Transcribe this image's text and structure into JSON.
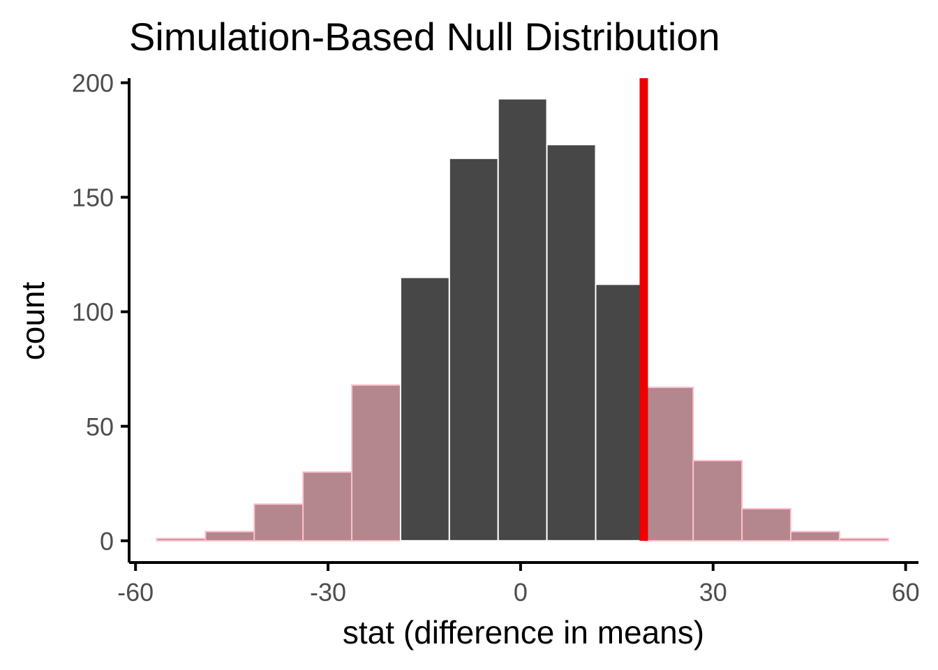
{
  "chart_data": {
    "type": "bar",
    "title": "Simulation-Based Null Distribution",
    "xlabel": "stat (difference in means)",
    "ylabel": "count",
    "xlim": [
      -61,
      62
    ],
    "ylim": [
      -9.5,
      202
    ],
    "x_ticks": [
      "-60",
      "-30",
      "0",
      "30",
      "60"
    ],
    "x_tick_values": [
      -60,
      -30,
      0,
      30,
      60
    ],
    "y_ticks": [
      "0",
      "50",
      "100",
      "150",
      "200"
    ],
    "y_tick_values": [
      0,
      50,
      100,
      150,
      200
    ],
    "bin_width": 7.6,
    "bins": [
      {
        "center": -52.9,
        "count": 1,
        "shaded": true
      },
      {
        "center": -45.3,
        "count": 4,
        "shaded": true
      },
      {
        "center": -37.7,
        "count": 16,
        "shaded": true
      },
      {
        "center": -30.1,
        "count": 30,
        "shaded": true
      },
      {
        "center": -22.5,
        "count": 68,
        "shaded": true
      },
      {
        "center": -14.9,
        "count": 115,
        "shaded": false
      },
      {
        "center": -7.3,
        "count": 167,
        "shaded": false
      },
      {
        "center": 0.3,
        "count": 193,
        "shaded": false
      },
      {
        "center": 7.9,
        "count": 173,
        "shaded": false
      },
      {
        "center": 15.5,
        "count": 112,
        "shaded": false
      },
      {
        "center": 23.1,
        "count": 67,
        "shaded": true
      },
      {
        "center": 30.7,
        "count": 35,
        "shaded": true
      },
      {
        "center": 38.3,
        "count": 14,
        "shaded": true
      },
      {
        "center": 45.9,
        "count": 4,
        "shaded": true
      },
      {
        "center": 53.5,
        "count": 1,
        "shaded": true
      }
    ],
    "observed_stat": 19.2,
    "colors": {
      "bar_fill": "#474747",
      "bar_edge": "#ffffff",
      "shade_fill": "#b4868d",
      "shade_edge": "#ffc0cb",
      "observed_line": "#ee0000",
      "axis": "#000000"
    },
    "grid": false,
    "legend": "none"
  }
}
